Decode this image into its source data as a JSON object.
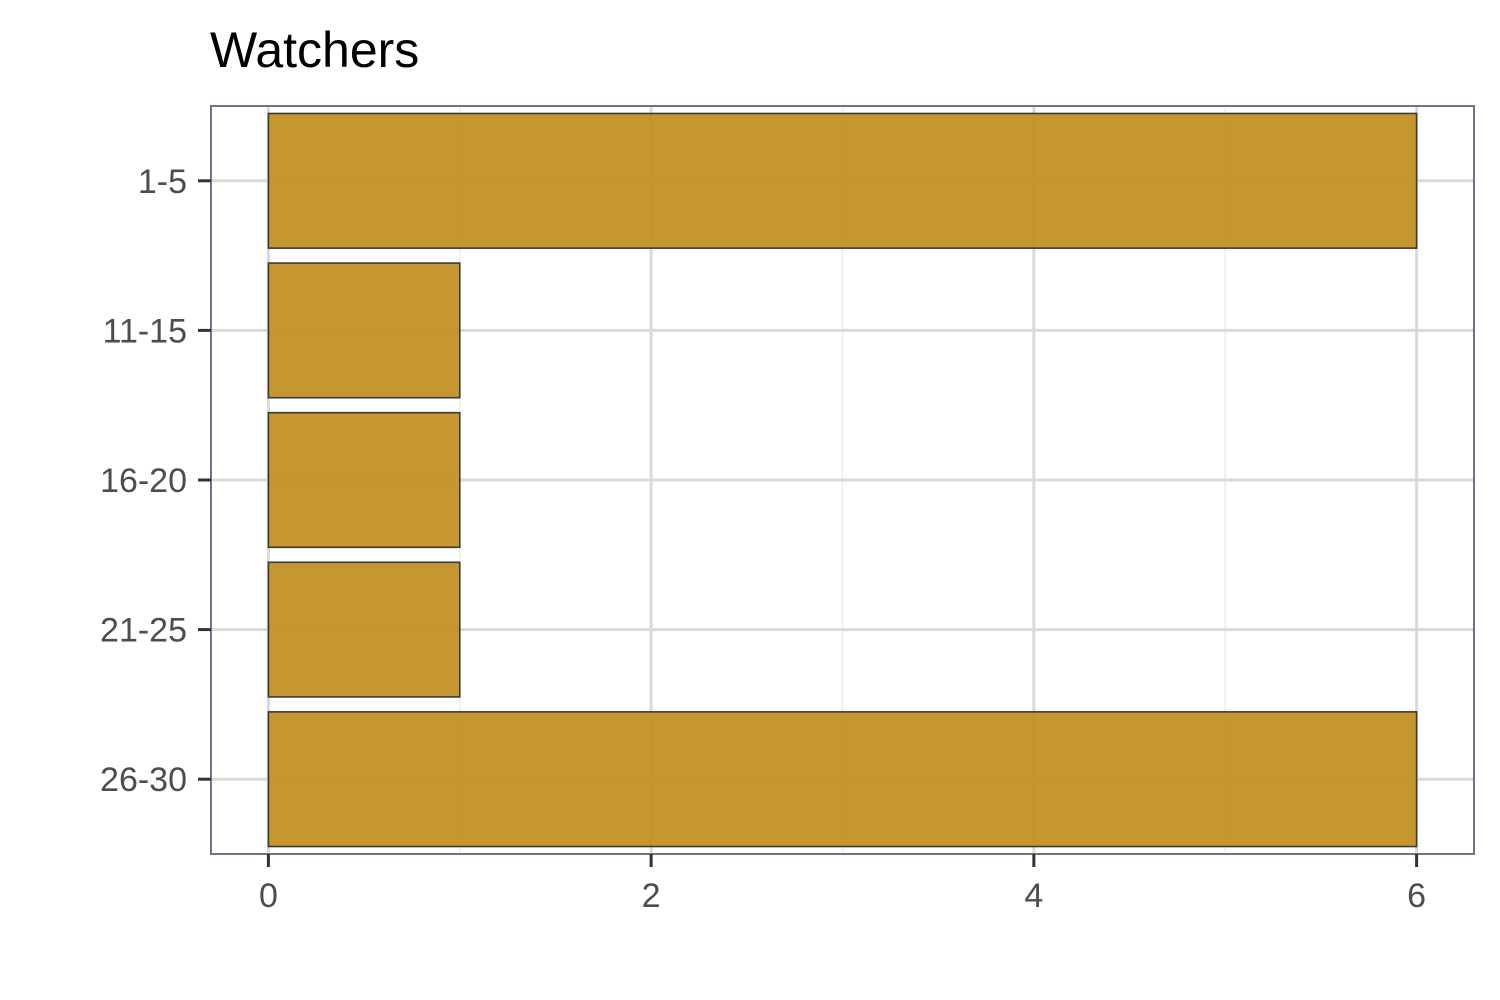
{
  "chart_data": {
    "type": "bar",
    "orientation": "horizontal",
    "title": "Watchers",
    "xlabel": "",
    "ylabel": "",
    "categories": [
      "1-5",
      "11-15",
      "16-20",
      "21-25",
      "26-30"
    ],
    "values": [
      6,
      1,
      1,
      1,
      6
    ],
    "xlim": [
      -0.3,
      6.3
    ],
    "xticks": [
      0,
      2,
      4,
      6
    ],
    "xtick_labels": [
      "0",
      "2",
      "4",
      "6"
    ],
    "grid": true,
    "legend": "none",
    "colors": {
      "bar_fill": "#C18E1D",
      "bar_stroke": "#3a3a3a",
      "grid_major": "#d9d9d9",
      "panel_border": "#6b7585",
      "tick_text": "#4d4d4d",
      "axis_ticks": "#333333"
    }
  }
}
